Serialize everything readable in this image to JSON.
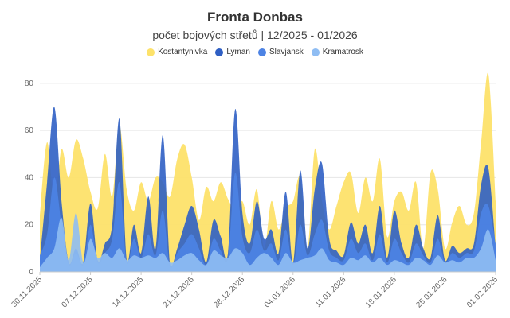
{
  "chart_data": {
    "type": "area",
    "title": "Fronta Donbas",
    "subtitle": "počet bojových střetů | 12/2025 - 01/2026",
    "xlabel": "",
    "ylabel": "",
    "ylim": [
      0,
      85
    ],
    "yticks": [
      0,
      20,
      40,
      60,
      80
    ],
    "grid": true,
    "legend_position": "top-center",
    "stacked": false,
    "x_tick_labels": [
      "30.11.2025",
      "07.12.2025",
      "14.12.2025",
      "21.12.2025",
      "28.12.2025",
      "04.01.2026",
      "11.01.2026",
      "18.01.2026",
      "25.01.2026",
      "01.02.2026"
    ],
    "x": [
      "30.11.2025",
      "01.12.2025",
      "02.12.2025",
      "03.12.2025",
      "04.12.2025",
      "05.12.2025",
      "06.12.2025",
      "07.12.2025",
      "08.12.2025",
      "09.12.2025",
      "10.12.2025",
      "11.12.2025",
      "12.12.2025",
      "13.12.2025",
      "14.12.2025",
      "15.12.2025",
      "16.12.2025",
      "17.12.2025",
      "18.12.2025",
      "19.12.2025",
      "20.12.2025",
      "21.12.2025",
      "22.12.2025",
      "23.12.2025",
      "24.12.2025",
      "25.12.2025",
      "26.12.2025",
      "27.12.2025",
      "28.12.2025",
      "29.12.2025",
      "30.12.2025",
      "31.12.2025",
      "01.01.2026",
      "02.01.2026",
      "03.01.2026",
      "04.01.2026",
      "05.01.2026",
      "06.01.2026",
      "07.01.2026",
      "08.01.2026",
      "09.01.2026",
      "10.01.2026",
      "11.01.2026",
      "12.01.2026",
      "13.01.2026",
      "14.01.2026",
      "15.01.2026",
      "16.01.2026",
      "17.01.2026",
      "18.01.2026",
      "19.01.2026",
      "20.01.2026",
      "21.01.2026",
      "22.01.2026",
      "23.01.2026",
      "24.01.2026",
      "25.01.2026",
      "26.01.2026",
      "27.01.2026",
      "28.01.2026",
      "29.01.2026",
      "30.01.2026",
      "31.01.2026",
      "01.02.2026"
    ],
    "series": [
      {
        "name": "Kostantynivka",
        "color": "#fde26a",
        "values": [
          24,
          55,
          30,
          52,
          40,
          56,
          48,
          34,
          27,
          50,
          32,
          62,
          35,
          26,
          38,
          30,
          40,
          38,
          32,
          48,
          54,
          40,
          22,
          36,
          30,
          38,
          31,
          26,
          30,
          20,
          35,
          10,
          30,
          18,
          27,
          30,
          40,
          10,
          52,
          30,
          18,
          28,
          38,
          42,
          25,
          40,
          30,
          48,
          15,
          30,
          34,
          26,
          38,
          10,
          42,
          35,
          10,
          21,
          28,
          20,
          25,
          55,
          84,
          30
        ]
      },
      {
        "name": "Lyman",
        "color": "#2f5fc4",
        "values": [
          5,
          38,
          70,
          30,
          4,
          10,
          4,
          29,
          5,
          12,
          20,
          65,
          5,
          20,
          8,
          32,
          10,
          58,
          3,
          10,
          20,
          28,
          18,
          4,
          22,
          15,
          8,
          69,
          25,
          12,
          30,
          14,
          18,
          8,
          34,
          4,
          43,
          10,
          35,
          46,
          14,
          9,
          7,
          21,
          12,
          20,
          8,
          28,
          6,
          26,
          12,
          6,
          20,
          10,
          6,
          24,
          5,
          11,
          8,
          10,
          12,
          37,
          44,
          10
        ]
      },
      {
        "name": "Slavjansk",
        "color": "#4d83e4",
        "values": [
          7,
          16,
          40,
          20,
          3,
          8,
          3,
          20,
          4,
          8,
          14,
          38,
          4,
          14,
          6,
          16,
          7,
          26,
          2,
          8,
          12,
          16,
          10,
          3,
          14,
          9,
          6,
          42,
          15,
          8,
          18,
          9,
          12,
          5,
          18,
          3,
          20,
          7,
          16,
          22,
          9,
          6,
          5,
          14,
          8,
          12,
          5,
          16,
          4,
          14,
          8,
          4,
          12,
          7,
          4,
          14,
          4,
          8,
          6,
          8,
          9,
          25,
          28,
          12
        ]
      },
      {
        "name": "Kramatrosk",
        "color": "#8fbdf3",
        "values": [
          2,
          6,
          10,
          23,
          5,
          25,
          4,
          14,
          6,
          8,
          6,
          10,
          5,
          7,
          6,
          7,
          6,
          8,
          4,
          5,
          7,
          8,
          5,
          3,
          9,
          7,
          6,
          10,
          8,
          3,
          6,
          8,
          6,
          3,
          8,
          4,
          5,
          6,
          7,
          10,
          5,
          4,
          3,
          6,
          5,
          7,
          4,
          6,
          3,
          5,
          4,
          3,
          6,
          5,
          3,
          7,
          4,
          5,
          4,
          6,
          6,
          10,
          18,
          5
        ]
      }
    ]
  }
}
